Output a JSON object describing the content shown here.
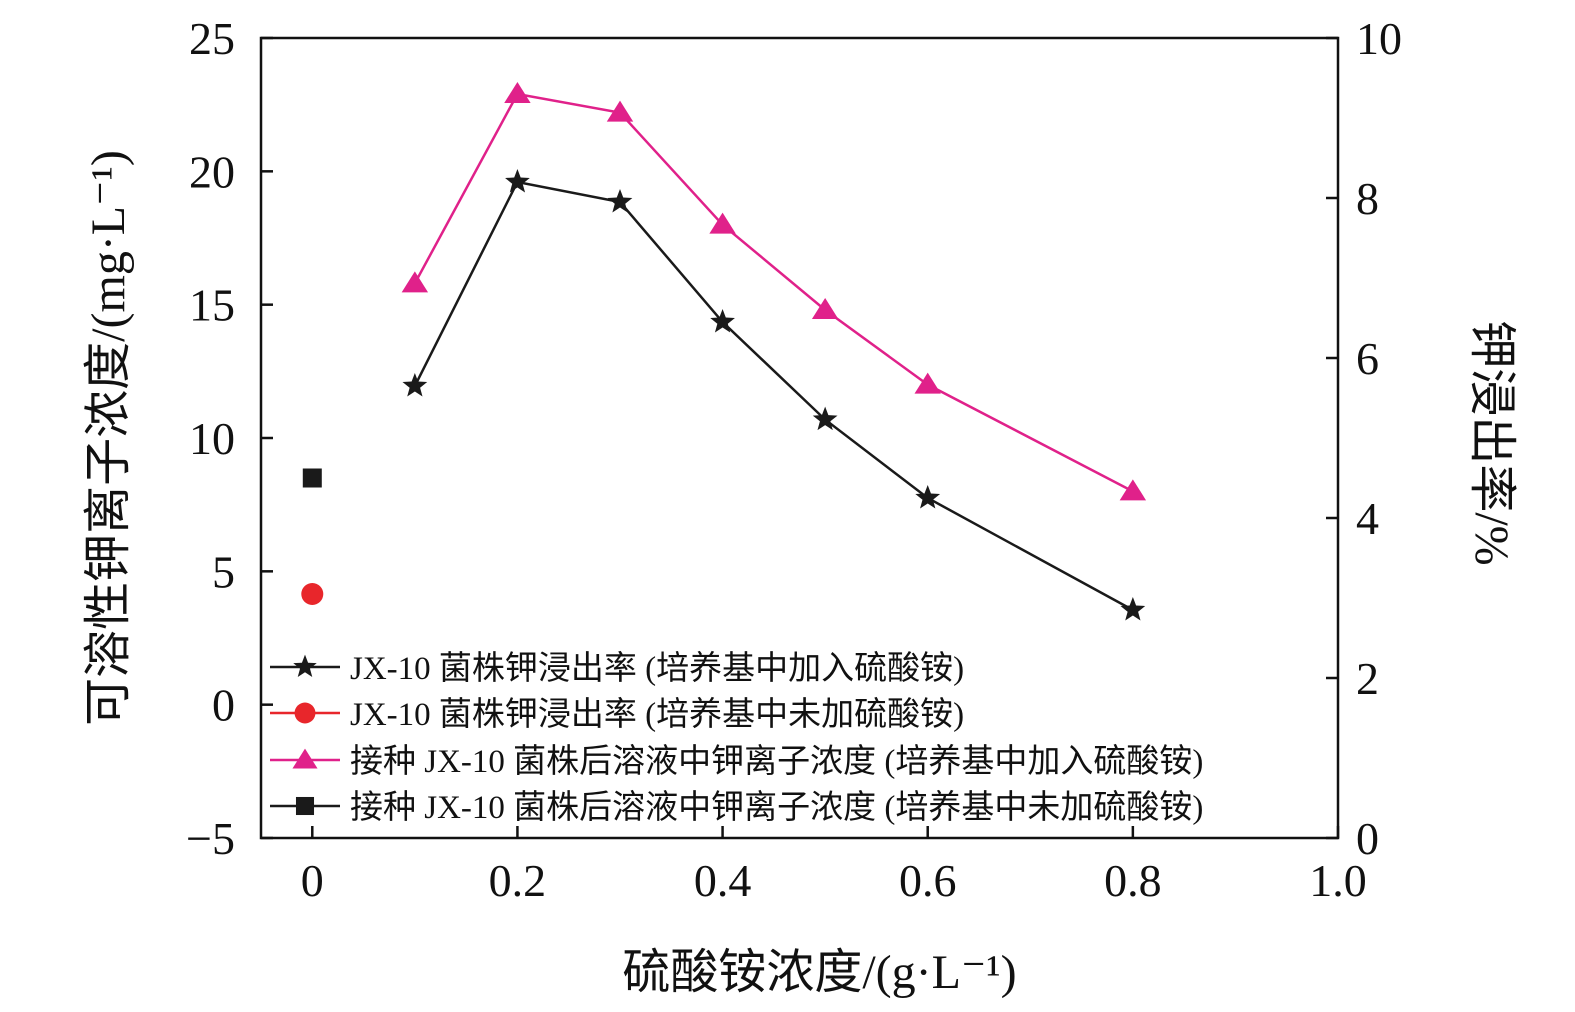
{
  "chart_data": {
    "type": "line",
    "xlabel": "硫酸铵浓度/(g·L⁻¹)",
    "ylabel_left": "可溶性钾离子浓度/(mg·L⁻¹)",
    "ylabel_right": "钾浸出率/%",
    "xlim": [
      -0.05,
      1.0
    ],
    "ylim_left": [
      -5,
      25
    ],
    "ylim_right": [
      0,
      10
    ],
    "x_ticks": [
      "0",
      "0.2",
      "0.4",
      "0.6",
      "0.8",
      "1.0"
    ],
    "x_tick_values": [
      0,
      0.2,
      0.4,
      0.6,
      0.8,
      1.0
    ],
    "y_left_ticks": [
      "−5",
      "0",
      "5",
      "10",
      "15",
      "20",
      "25"
    ],
    "y_left_tick_values": [
      -5,
      0,
      5,
      10,
      15,
      20,
      25
    ],
    "y_right_ticks": [
      "0",
      "2",
      "4",
      "6",
      "8",
      "10"
    ],
    "y_right_tick_values": [
      0,
      2,
      4,
      6,
      8,
      10
    ],
    "grid": false,
    "legend_position": "bottom-left",
    "series": [
      {
        "name": "JX-10 菌株钾浸出率 (培养基中加入硫酸铵)",
        "axis": "right",
        "marker": "star",
        "color": "#1a1a1a",
        "line": true,
        "x": [
          0.1,
          0.2,
          0.3,
          0.4,
          0.5,
          0.6,
          0.8
        ],
        "y": [
          5.65,
          8.2,
          7.95,
          6.45,
          5.23,
          4.25,
          2.85
        ]
      },
      {
        "name": "JX-10 菌株钾浸出率 (培养基中未加硫酸铵)",
        "axis": "right",
        "marker": "circle",
        "color": "#e8262b",
        "line": false,
        "x": [
          0
        ],
        "y": [
          3.05
        ]
      },
      {
        "name": "接种 JX-10 菌株后溶液中钾离子浓度 (培养基中加入硫酸铵)",
        "axis": "left",
        "marker": "triangle",
        "color": "#e0218a",
        "line": true,
        "x": [
          0.1,
          0.2,
          0.3,
          0.4,
          0.5,
          0.6,
          0.8
        ],
        "y": [
          15.8,
          22.9,
          22.2,
          18.0,
          14.8,
          12.0,
          8.0
        ]
      },
      {
        "name": "接种 JX-10 菌株后溶液中钾离子浓度 (培养基中未加硫酸铵)",
        "axis": "left",
        "marker": "square",
        "color": "#1a1a1a",
        "line": false,
        "x": [
          0
        ],
        "y": [
          8.5
        ]
      }
    ]
  }
}
